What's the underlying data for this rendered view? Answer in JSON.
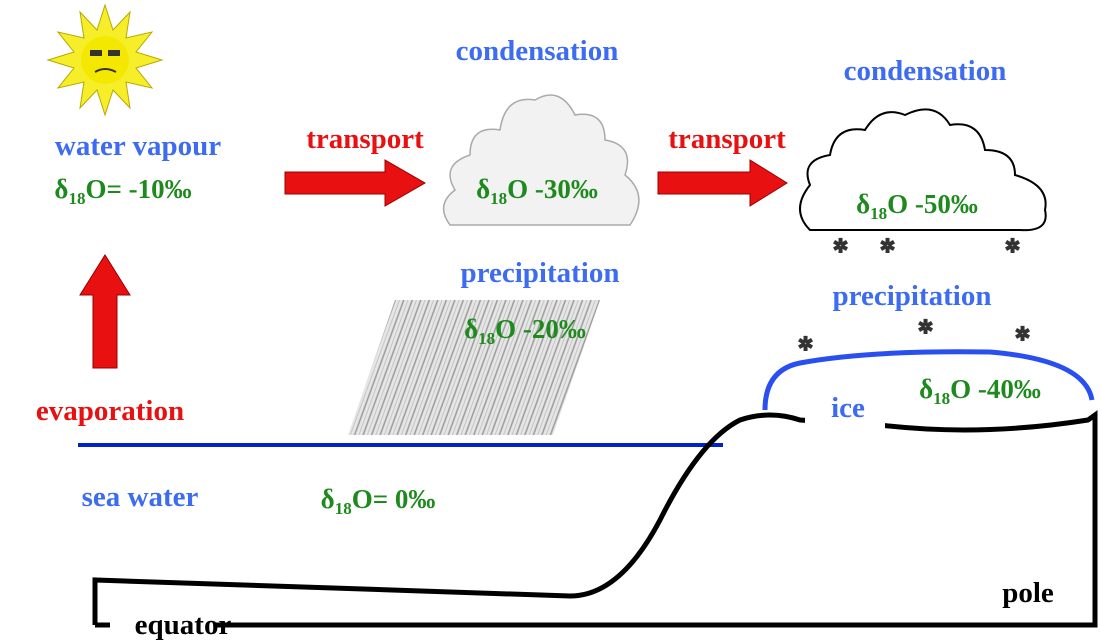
{
  "labels": {
    "water_vapour": "water vapour",
    "transport_1": "transport",
    "condensation_1": "condensation",
    "transport_2": "transport",
    "condensation_2": "condensation",
    "precipitation_1": "precipitation",
    "precipitation_2": "precipitation",
    "evaporation": "evaporation",
    "sea_water": "sea water",
    "ice": "ice",
    "pole": "pole",
    "equator": "equator"
  },
  "isotopes": [
    {
      "symbol": "δ",
      "sub": "18",
      "rest": "O= -10‰"
    },
    {
      "symbol": "δ",
      "sub": "18",
      "rest": "O -30‰"
    },
    {
      "symbol": "δ",
      "sub": "18",
      "rest": "O -50‰"
    },
    {
      "symbol": "δ",
      "sub": "18",
      "rest": "O -20‰"
    },
    {
      "symbol": "δ",
      "sub": "18",
      "rest": "O -40‰"
    },
    {
      "symbol": "δ",
      "sub": "18",
      "rest": "O= 0‰"
    }
  ]
}
